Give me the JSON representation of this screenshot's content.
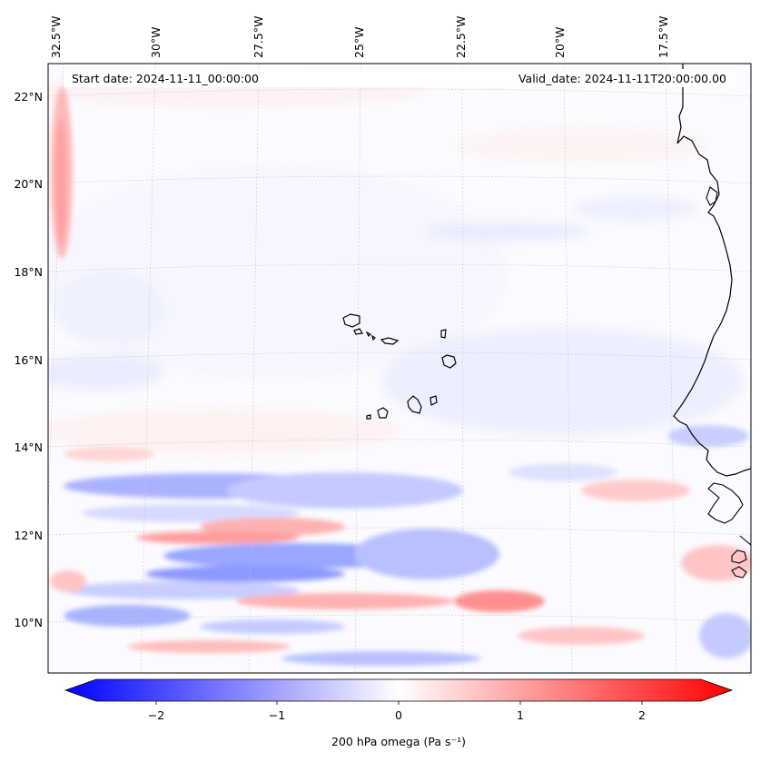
{
  "header": {
    "start_date": "Start date: 2024-11-11_00:00:00",
    "valid_date": "Valid_date: 2024-11-11T20:00:00.00"
  },
  "map": {
    "projection": "lambert-conformal",
    "lon_labels": [
      "32.5°W",
      "30°W",
      "27.5°W",
      "25°W",
      "22.5°W",
      "20°W",
      "17.5°W"
    ],
    "lat_labels": [
      "22°N",
      "20°N",
      "18°N",
      "16°N",
      "14°N",
      "12°N",
      "10°N"
    ],
    "gridlines": true,
    "field": "200 hPa omega",
    "features": [
      "West African coastline",
      "Cape Verde islands"
    ]
  },
  "colorbar": {
    "label": "200 hPa omega (Pa s⁻¹)",
    "ticks": [
      "−2",
      "−1",
      "0",
      "1",
      "2"
    ],
    "range": [
      -2.6,
      2.6
    ],
    "colormap": "bwr",
    "extend": "both",
    "low_color": "#0000ff",
    "mid_color": "#ffffff",
    "high_color": "#ff0000"
  },
  "colors": {
    "ascent_blue": "#9aa6ff",
    "descent_red": "#ff9c9c"
  }
}
